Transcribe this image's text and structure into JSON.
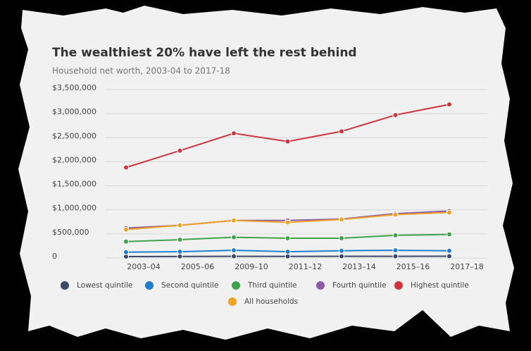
{
  "chart_data": {
    "type": "line",
    "title": "The wealthiest 20% have left the rest behind",
    "subtitle": "Household net worth, 2003-04 to 2017-18",
    "categories": [
      "2003–04",
      "2005–06",
      "2009–10",
      "2011–12",
      "2013–14",
      "2015–16",
      "2017–18"
    ],
    "series": [
      {
        "name": "Lowest quintile",
        "color": "#3b4a6b",
        "values": [
          30000,
          32000,
          35000,
          33000,
          34000,
          35000,
          36000
        ]
      },
      {
        "name": "Second quintile",
        "color": "#1f7fd0",
        "values": [
          120000,
          130000,
          160000,
          130000,
          150000,
          160000,
          150000
        ]
      },
      {
        "name": "Third quintile",
        "color": "#3fa34d",
        "values": [
          340000,
          380000,
          430000,
          410000,
          410000,
          470000,
          490000
        ]
      },
      {
        "name": "Fourth quintile",
        "color": "#8e5aa8",
        "values": [
          620000,
          680000,
          780000,
          780000,
          810000,
          920000,
          975000
        ]
      },
      {
        "name": "Highest quintile",
        "color": "#d0343f",
        "values": [
          1880000,
          2230000,
          2590000,
          2420000,
          2630000,
          2970000,
          3190000
        ]
      },
      {
        "name": "All households",
        "color": "#f0a323",
        "values": [
          590000,
          680000,
          780000,
          740000,
          800000,
          900000,
          945000
        ]
      }
    ],
    "ylim": [
      0,
      3500000
    ],
    "yticks": [
      0,
      {
        "value": 500000,
        "label": "$500,000"
      },
      {
        "value": 1000000,
        "label": "$1,000,000"
      },
      {
        "value": 1500000,
        "label": "$1,500,000"
      },
      {
        "value": 2000000,
        "label": "$2,000,000"
      },
      {
        "value": 2500000,
        "label": "$2,500,000"
      },
      {
        "value": 3000000,
        "label": "$3,000,000"
      },
      {
        "value": 3500000,
        "label": "$3,500,000"
      }
    ],
    "grid": true
  }
}
